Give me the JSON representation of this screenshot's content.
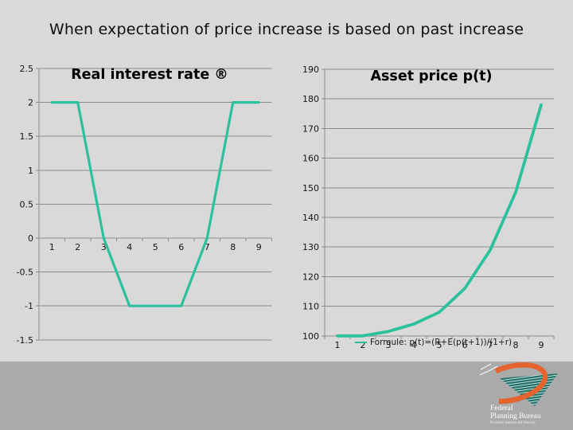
{
  "slide": {
    "title": "When expectation of price increase is based on past increase"
  },
  "colors": {
    "background": "#d9d9d9",
    "footer_band": "#aaaaaa",
    "accent_teal": "#2cc19e",
    "gridline": "#8a8a8a",
    "axis_text": "#141414",
    "logo_orange": "#e5632c",
    "logo_teal": "#20726b"
  },
  "chart_data": [
    {
      "type": "line",
      "title": "Real interest rate ®",
      "categories": [
        "1",
        "2",
        "3",
        "4",
        "5",
        "6",
        "7",
        "8",
        "9"
      ],
      "values": [
        2,
        2,
        0,
        -1,
        -1,
        -1,
        0,
        2,
        2
      ],
      "y_ticks": [
        2.5,
        2,
        1.5,
        1,
        0.5,
        0,
        -0.5,
        -1,
        -1.5
      ],
      "ylim": [
        -1.5,
        2.5
      ],
      "x_axis_at": 0,
      "grid": true,
      "legend": null,
      "line_color": "#2cc19e"
    },
    {
      "type": "line",
      "title": "Asset price p(t)",
      "categories": [
        "1",
        "2",
        "3",
        "4",
        "5",
        "6",
        "7",
        "8",
        "9"
      ],
      "values": [
        100,
        100,
        101.5,
        104,
        108,
        116,
        129,
        148.5,
        178
      ],
      "y_ticks": [
        190,
        180,
        170,
        160,
        150,
        140,
        130,
        120,
        110,
        100
      ],
      "ylim": [
        100,
        190
      ],
      "x_axis_at": 100,
      "grid": true,
      "legend": "Formule: p(t)=(R+E(p(t+1))/(1+r)",
      "line_color": "#2cc19e"
    }
  ],
  "logo": {
    "line1": "Federal",
    "line2": "Planning Bureau",
    "tagline": "Economic analyses and forecasts"
  }
}
